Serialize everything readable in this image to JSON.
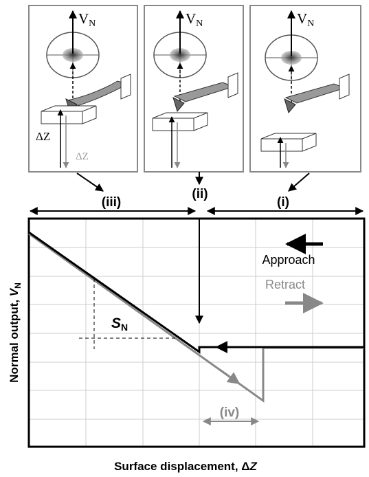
{
  "top_panels": [
    {
      "signal_symbol": "V",
      "signal_subscript": "N",
      "displacement_label": "ΔZ",
      "displacement_label_retract": "ΔZ"
    },
    {
      "signal_symbol": "V",
      "signal_subscript": "N"
    },
    {
      "signal_symbol": "V",
      "signal_subscript": "N"
    }
  ],
  "regions": [
    "(iii)",
    "(ii)",
    "(i)"
  ],
  "plot": {
    "approach_label": "Approach",
    "retract_label": "Retract",
    "slope_symbol": "S",
    "slope_subscript": "N",
    "region_iv": "(iv)",
    "y_axis_label": {
      "text": "Normal output, ",
      "symbol": "V",
      "subscript": "N"
    },
    "x_axis_label": {
      "text": "Surface displacement, Δ",
      "symbol": "Z"
    }
  }
}
